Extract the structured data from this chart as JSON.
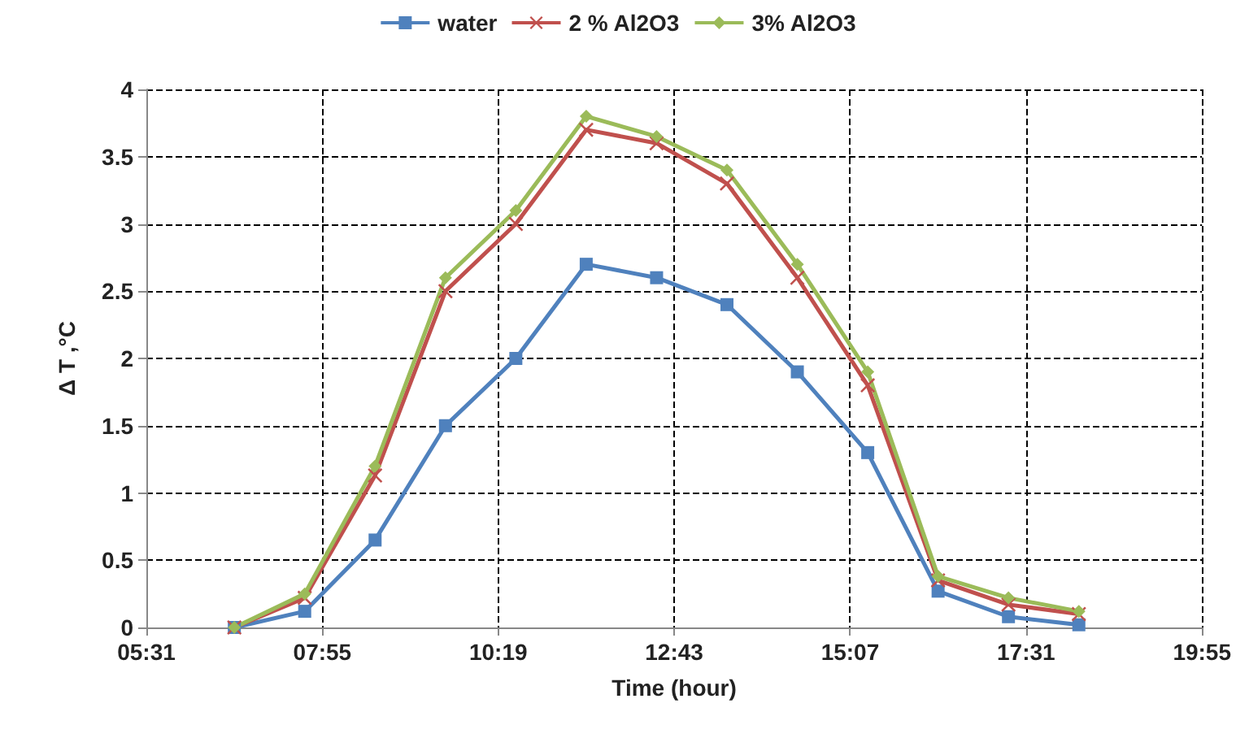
{
  "chart_data": {
    "type": "line",
    "xlabel": "Time (hour)",
    "ylabel": "Δ T ,°C",
    "x": [
      6.72,
      7.68,
      8.64,
      9.6,
      10.56,
      11.52,
      12.48,
      13.44,
      14.4,
      15.36,
      16.32,
      17.28,
      18.24
    ],
    "series": [
      {
        "name": "water",
        "color": "#4f81bd",
        "marker": "square",
        "values": [
          0,
          0.12,
          0.65,
          1.5,
          2.0,
          2.7,
          2.6,
          2.4,
          1.9,
          1.3,
          0.27,
          0.08,
          0.02
        ]
      },
      {
        "name": "2 % Al2O3",
        "color": "#c0504d",
        "marker": "cross",
        "values": [
          0,
          0.22,
          1.13,
          2.5,
          3.0,
          3.7,
          3.6,
          3.3,
          2.6,
          1.8,
          0.35,
          0.17,
          0.1
        ]
      },
      {
        "name": "3% Al2O3",
        "color": "#9bbb59",
        "marker": "diamond",
        "values": [
          0,
          0.25,
          1.2,
          2.6,
          3.1,
          3.8,
          3.65,
          3.4,
          2.7,
          1.9,
          0.38,
          0.22,
          0.12
        ]
      }
    ],
    "xlim": [
      5.52,
      19.92
    ],
    "xticks": [
      {
        "value": 5.52,
        "label": "05:31"
      },
      {
        "value": 7.92,
        "label": "07:55"
      },
      {
        "value": 10.32,
        "label": "10:19"
      },
      {
        "value": 12.72,
        "label": "12:43"
      },
      {
        "value": 15.12,
        "label": "15:07"
      },
      {
        "value": 17.52,
        "label": "17:31"
      },
      {
        "value": 19.92,
        "label": "19:55"
      }
    ],
    "ylim": [
      0,
      4
    ],
    "yticks": [
      0,
      0.5,
      1,
      1.5,
      2,
      2.5,
      3,
      3.5,
      4
    ],
    "grid": true,
    "legend": "top",
    "line_style": "solid"
  }
}
